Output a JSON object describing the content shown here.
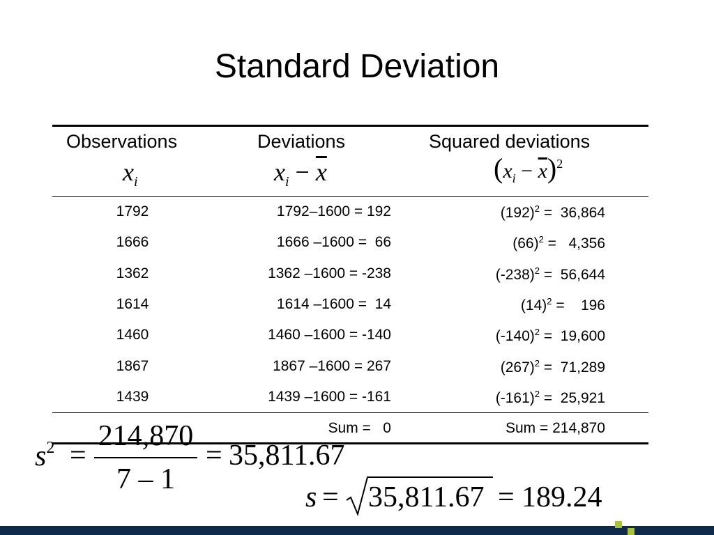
{
  "title": "Standard Deviation",
  "table": {
    "headers": [
      "Observations",
      "Deviations",
      "Squared deviations"
    ],
    "header_formulas": [
      {
        "symbol": "x",
        "subscript": "i"
      },
      {
        "symbol": "x",
        "subscript": "i",
        "minus": "−",
        "mean": "x"
      },
      {
        "open": "(",
        "symbol": "x",
        "subscript": "i",
        "minus": "−",
        "mean": "x",
        "close": ")",
        "exponent": "2"
      }
    ],
    "rows": [
      {
        "observation": "1792",
        "deviation": "1792–1600 = 192",
        "square_base": "(192)",
        "square_exponent": "2",
        "square_result": " =  36,864"
      },
      {
        "observation": "1666",
        "deviation": "1666 –1600 =  66",
        "square_base": "(66)",
        "square_exponent": "2",
        "square_result": " =   4,356"
      },
      {
        "observation": "1362",
        "deviation": "1362 –1600 = -238",
        "square_base": "(-238)",
        "square_exponent": "2",
        "square_result": " =  56,644"
      },
      {
        "observation": "1614",
        "deviation": "1614 –1600 =  14",
        "square_base": "(14)",
        "square_exponent": "2",
        "square_result": " =    196"
      },
      {
        "observation": "1460",
        "deviation": "1460 –1600 = -140",
        "square_base": "(-140)",
        "square_exponent": "2",
        "square_result": " =  19,600"
      },
      {
        "observation": "1867",
        "deviation": "1867 –1600 = 267",
        "square_base": "(267)",
        "square_exponent": "2",
        "square_result": " =  71,289"
      },
      {
        "observation": "1439",
        "deviation": "1439 –1600 = -161",
        "square_base": "(-161)",
        "square_exponent": "2",
        "square_result": " =  25,921"
      }
    ],
    "sums": [
      "Sum =   0",
      "Sum = 214,870"
    ]
  },
  "formulas": {
    "variance": {
      "symbol": "s",
      "exponent": "2",
      "equals_1": "=",
      "numerator": "214,870",
      "denominator": "7 – 1",
      "equals_2": "=",
      "result": "35,811.67"
    },
    "standard_deviation": {
      "symbol": "s",
      "equals_1": "=",
      "radicand": "35,811.67",
      "equals_2": "=",
      "result": "189.24"
    }
  }
}
